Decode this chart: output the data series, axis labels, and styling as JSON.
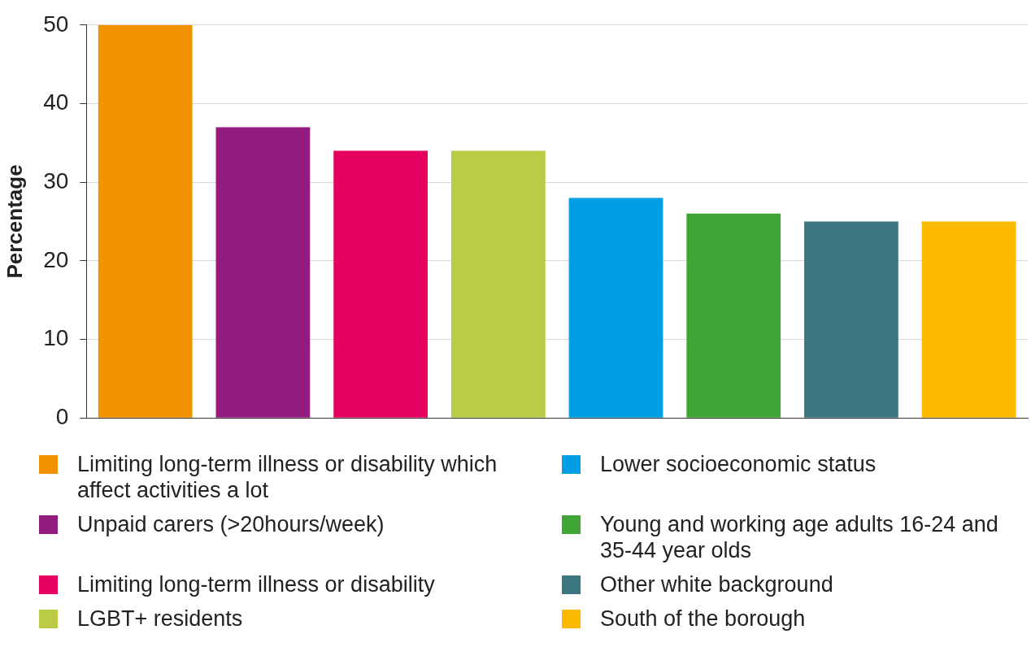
{
  "chart_data": {
    "type": "bar",
    "ylabel": "Percentage",
    "categories": [
      null,
      null,
      null,
      null,
      null,
      null,
      null,
      null
    ],
    "series": [
      {
        "name": "Limiting long-term illness or disability which affect activities a lot",
        "color": "#f39200",
        "values": [
          50,
          null,
          null,
          null,
          null,
          null,
          null,
          null
        ]
      },
      {
        "name": "Unpaid carers (>20hours/week)",
        "color": "#931c7e",
        "values": [
          null,
          37,
          null,
          null,
          null,
          null,
          null,
          null
        ]
      },
      {
        "name": "Limiting long-term illness or disability",
        "color": "#e6005f",
        "values": [
          null,
          null,
          34,
          null,
          null,
          null,
          null,
          null
        ]
      },
      {
        "name": "LGBT+ residents",
        "color": "#bccb45",
        "values": [
          null,
          null,
          null,
          34,
          null,
          null,
          null,
          null
        ]
      },
      {
        "name": "Lower socioeconomic status",
        "color": "#009fe3",
        "values": [
          null,
          null,
          null,
          null,
          28,
          null,
          null,
          null
        ]
      },
      {
        "name": "Young and working age adults 16-24 and 35-44 year olds",
        "color": "#3fa535",
        "values": [
          null,
          null,
          null,
          null,
          null,
          26,
          null,
          null
        ]
      },
      {
        "name": "Other white background",
        "color": "#3c7680",
        "values": [
          null,
          null,
          null,
          null,
          null,
          null,
          25,
          null
        ]
      },
      {
        "name": "South of the borough",
        "color": "#fbb900",
        "values": [
          null,
          null,
          null,
          null,
          null,
          null,
          null,
          25
        ]
      }
    ],
    "ylim": [
      0,
      50
    ],
    "yticks": [
      0,
      10,
      20,
      30,
      40,
      50
    ],
    "grid": "y",
    "legend": "bottom"
  }
}
